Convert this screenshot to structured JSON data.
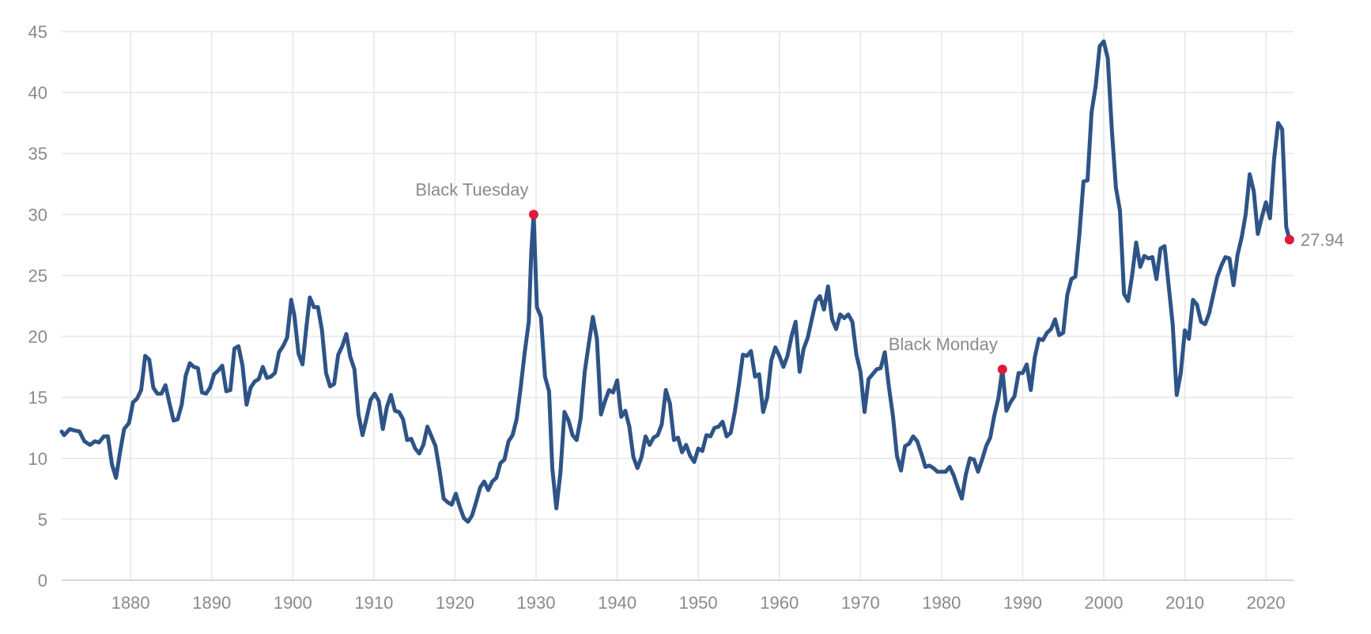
{
  "chart_data": {
    "type": "line",
    "title": "",
    "xlabel": "",
    "ylabel": "",
    "xlim": [
      1871.5,
      2023.4
    ],
    "ylim": [
      0,
      45
    ],
    "x_ticks": [
      1880,
      1890,
      1900,
      1910,
      1920,
      1930,
      1940,
      1950,
      1960,
      1970,
      1980,
      1990,
      2000,
      2010,
      2020
    ],
    "y_ticks": [
      0,
      5,
      10,
      15,
      20,
      25,
      30,
      35,
      40,
      45
    ],
    "grid": true,
    "legend": "none",
    "colors": {
      "series": "#2e5487",
      "marker": "#e0193d",
      "grid": "#e6e6e6",
      "text": "#8a8a8a"
    },
    "series": [
      {
        "points": [
          [
            1871.5,
            12.2
          ],
          [
            1871.8,
            11.9
          ],
          [
            1872.5,
            12.4
          ],
          [
            1873.0,
            12.3
          ],
          [
            1873.7,
            12.2
          ],
          [
            1874.3,
            11.4
          ],
          [
            1875.0,
            11.1
          ],
          [
            1875.6,
            11.4
          ],
          [
            1876.1,
            11.3
          ],
          [
            1876.7,
            11.8
          ],
          [
            1877.2,
            11.8
          ],
          [
            1877.7,
            9.5
          ],
          [
            1878.2,
            8.4
          ],
          [
            1878.7,
            10.5
          ],
          [
            1879.2,
            12.4
          ],
          [
            1879.8,
            12.9
          ],
          [
            1880.3,
            14.6
          ],
          [
            1880.8,
            14.9
          ],
          [
            1881.3,
            15.6
          ],
          [
            1881.8,
            18.4
          ],
          [
            1882.3,
            18.1
          ],
          [
            1882.8,
            15.8
          ],
          [
            1883.3,
            15.3
          ],
          [
            1883.8,
            15.3
          ],
          [
            1884.3,
            16.0
          ],
          [
            1884.8,
            14.5
          ],
          [
            1885.3,
            13.1
          ],
          [
            1885.8,
            13.2
          ],
          [
            1886.3,
            14.4
          ],
          [
            1886.8,
            16.8
          ],
          [
            1887.3,
            17.8
          ],
          [
            1887.8,
            17.5
          ],
          [
            1888.3,
            17.4
          ],
          [
            1888.8,
            15.4
          ],
          [
            1889.3,
            15.3
          ],
          [
            1889.8,
            15.8
          ],
          [
            1890.3,
            16.9
          ],
          [
            1890.8,
            17.2
          ],
          [
            1891.3,
            17.6
          ],
          [
            1891.8,
            15.5
          ],
          [
            1892.3,
            15.6
          ],
          [
            1892.8,
            19.0
          ],
          [
            1893.3,
            19.2
          ],
          [
            1893.8,
            17.6
          ],
          [
            1894.3,
            14.4
          ],
          [
            1894.8,
            15.8
          ],
          [
            1895.3,
            16.3
          ],
          [
            1895.8,
            16.5
          ],
          [
            1896.3,
            17.5
          ],
          [
            1896.8,
            16.6
          ],
          [
            1897.3,
            16.7
          ],
          [
            1897.8,
            17.0
          ],
          [
            1898.3,
            18.7
          ],
          [
            1898.8,
            19.2
          ],
          [
            1899.3,
            19.9
          ],
          [
            1899.8,
            23.0
          ],
          [
            1900.2,
            21.7
          ],
          [
            1900.7,
            18.6
          ],
          [
            1901.2,
            17.7
          ],
          [
            1901.7,
            20.9
          ],
          [
            1902.1,
            23.2
          ],
          [
            1902.6,
            22.4
          ],
          [
            1903.1,
            22.4
          ],
          [
            1903.6,
            20.5
          ],
          [
            1904.1,
            17.0
          ],
          [
            1904.6,
            15.9
          ],
          [
            1905.1,
            16.1
          ],
          [
            1905.6,
            18.5
          ],
          [
            1906.1,
            19.2
          ],
          [
            1906.6,
            20.2
          ],
          [
            1907.1,
            18.3
          ],
          [
            1907.6,
            17.3
          ],
          [
            1908.1,
            13.6
          ],
          [
            1908.6,
            11.9
          ],
          [
            1909.1,
            13.3
          ],
          [
            1909.6,
            14.8
          ],
          [
            1910.1,
            15.3
          ],
          [
            1910.6,
            14.7
          ],
          [
            1911.1,
            12.4
          ],
          [
            1911.6,
            14.2
          ],
          [
            1912.1,
            15.2
          ],
          [
            1912.6,
            13.9
          ],
          [
            1913.1,
            13.8
          ],
          [
            1913.6,
            13.2
          ],
          [
            1914.1,
            11.5
          ],
          [
            1914.6,
            11.6
          ],
          [
            1915.1,
            10.8
          ],
          [
            1915.6,
            10.4
          ],
          [
            1916.1,
            11.1
          ],
          [
            1916.6,
            12.6
          ],
          [
            1917.1,
            11.8
          ],
          [
            1917.6,
            11.0
          ],
          [
            1918.1,
            9.0
          ],
          [
            1918.6,
            6.7
          ],
          [
            1919.1,
            6.4
          ],
          [
            1919.6,
            6.2
          ],
          [
            1920.1,
            7.1
          ],
          [
            1920.6,
            6.0
          ],
          [
            1921.1,
            5.1
          ],
          [
            1921.6,
            4.8
          ],
          [
            1922.1,
            5.3
          ],
          [
            1922.6,
            6.4
          ],
          [
            1923.1,
            7.6
          ],
          [
            1923.6,
            8.1
          ],
          [
            1924.1,
            7.4
          ],
          [
            1924.6,
            8.1
          ],
          [
            1925.1,
            8.4
          ],
          [
            1925.6,
            9.6
          ],
          [
            1926.1,
            9.9
          ],
          [
            1926.6,
            11.4
          ],
          [
            1927.1,
            11.9
          ],
          [
            1927.6,
            13.2
          ],
          [
            1928.1,
            15.8
          ],
          [
            1928.6,
            18.7
          ],
          [
            1929.1,
            21.2
          ],
          [
            1929.4,
            26.8
          ],
          [
            1929.7,
            30.0
          ],
          [
            1930.1,
            22.4
          ],
          [
            1930.6,
            21.6
          ],
          [
            1931.1,
            16.7
          ],
          [
            1931.6,
            15.5
          ],
          [
            1932.0,
            9.2
          ],
          [
            1932.5,
            5.9
          ],
          [
            1933.0,
            8.8
          ],
          [
            1933.5,
            13.8
          ],
          [
            1934.0,
            13.1
          ],
          [
            1934.5,
            11.9
          ],
          [
            1935.0,
            11.5
          ],
          [
            1935.5,
            13.3
          ],
          [
            1936.0,
            17.1
          ],
          [
            1936.5,
            19.4
          ],
          [
            1937.0,
            21.6
          ],
          [
            1937.5,
            19.8
          ],
          [
            1938.0,
            13.6
          ],
          [
            1938.5,
            14.7
          ],
          [
            1939.0,
            15.6
          ],
          [
            1939.5,
            15.4
          ],
          [
            1940.0,
            16.4
          ],
          [
            1940.5,
            13.4
          ],
          [
            1941.0,
            13.9
          ],
          [
            1941.5,
            12.6
          ],
          [
            1942.0,
            10.1
          ],
          [
            1942.5,
            9.2
          ],
          [
            1943.0,
            10.1
          ],
          [
            1943.5,
            11.8
          ],
          [
            1944.0,
            11.1
          ],
          [
            1944.5,
            11.7
          ],
          [
            1945.0,
            11.9
          ],
          [
            1945.5,
            12.8
          ],
          [
            1946.0,
            15.6
          ],
          [
            1946.5,
            14.5
          ],
          [
            1947.0,
            11.5
          ],
          [
            1947.5,
            11.7
          ],
          [
            1948.0,
            10.5
          ],
          [
            1948.5,
            11.1
          ],
          [
            1949.0,
            10.2
          ],
          [
            1949.5,
            9.7
          ],
          [
            1950.0,
            10.8
          ],
          [
            1950.5,
            10.6
          ],
          [
            1951.0,
            11.9
          ],
          [
            1951.5,
            11.8
          ],
          [
            1952.0,
            12.5
          ],
          [
            1952.5,
            12.6
          ],
          [
            1953.0,
            13.0
          ],
          [
            1953.5,
            11.8
          ],
          [
            1954.0,
            12.1
          ],
          [
            1954.5,
            13.8
          ],
          [
            1955.0,
            16.0
          ],
          [
            1955.5,
            18.5
          ],
          [
            1956.0,
            18.4
          ],
          [
            1956.5,
            18.8
          ],
          [
            1957.0,
            16.7
          ],
          [
            1957.5,
            16.9
          ],
          [
            1958.0,
            13.8
          ],
          [
            1958.5,
            15.0
          ],
          [
            1959.0,
            18.0
          ],
          [
            1959.5,
            19.1
          ],
          [
            1960.0,
            18.4
          ],
          [
            1960.5,
            17.5
          ],
          [
            1961.0,
            18.4
          ],
          [
            1961.5,
            20.0
          ],
          [
            1962.0,
            21.2
          ],
          [
            1962.5,
            17.1
          ],
          [
            1963.0,
            19.0
          ],
          [
            1963.5,
            19.9
          ],
          [
            1964.0,
            21.4
          ],
          [
            1964.5,
            22.9
          ],
          [
            1965.0,
            23.3
          ],
          [
            1965.5,
            22.2
          ],
          [
            1966.0,
            24.1
          ],
          [
            1966.5,
            21.4
          ],
          [
            1967.0,
            20.6
          ],
          [
            1967.5,
            21.8
          ],
          [
            1968.0,
            21.5
          ],
          [
            1968.5,
            21.8
          ],
          [
            1969.0,
            21.2
          ],
          [
            1969.5,
            18.5
          ],
          [
            1970.0,
            17.1
          ],
          [
            1970.5,
            13.8
          ],
          [
            1971.0,
            16.5
          ],
          [
            1971.5,
            16.9
          ],
          [
            1972.0,
            17.3
          ],
          [
            1972.5,
            17.4
          ],
          [
            1973.0,
            18.7
          ],
          [
            1973.5,
            15.9
          ],
          [
            1974.0,
            13.5
          ],
          [
            1974.5,
            10.2
          ],
          [
            1975.0,
            9.0
          ],
          [
            1975.5,
            11.0
          ],
          [
            1976.0,
            11.2
          ],
          [
            1976.5,
            11.8
          ],
          [
            1977.0,
            11.4
          ],
          [
            1977.5,
            10.4
          ],
          [
            1978.0,
            9.3
          ],
          [
            1978.5,
            9.4
          ],
          [
            1979.0,
            9.2
          ],
          [
            1979.5,
            8.9
          ],
          [
            1980.0,
            8.9
          ],
          [
            1980.5,
            8.9
          ],
          [
            1981.0,
            9.3
          ],
          [
            1981.5,
            8.6
          ],
          [
            1982.0,
            7.6
          ],
          [
            1982.5,
            6.7
          ],
          [
            1983.0,
            8.7
          ],
          [
            1983.5,
            10.0
          ],
          [
            1984.0,
            9.9
          ],
          [
            1984.5,
            8.9
          ],
          [
            1985.0,
            9.9
          ],
          [
            1985.5,
            11.0
          ],
          [
            1986.0,
            11.7
          ],
          [
            1986.5,
            13.5
          ],
          [
            1987.0,
            14.9
          ],
          [
            1987.5,
            17.3
          ],
          [
            1988.0,
            13.9
          ],
          [
            1988.5,
            14.6
          ],
          [
            1989.0,
            15.1
          ],
          [
            1989.5,
            17.0
          ],
          [
            1990.0,
            17.0
          ],
          [
            1990.5,
            17.7
          ],
          [
            1991.0,
            15.6
          ],
          [
            1991.5,
            18.3
          ],
          [
            1992.0,
            19.8
          ],
          [
            1992.5,
            19.7
          ],
          [
            1993.0,
            20.3
          ],
          [
            1993.5,
            20.6
          ],
          [
            1994.0,
            21.4
          ],
          [
            1994.5,
            20.1
          ],
          [
            1995.0,
            20.3
          ],
          [
            1995.5,
            23.4
          ],
          [
            1996.0,
            24.7
          ],
          [
            1996.5,
            24.9
          ],
          [
            1997.0,
            28.4
          ],
          [
            1997.5,
            32.7
          ],
          [
            1998.0,
            32.8
          ],
          [
            1998.5,
            38.4
          ],
          [
            1999.0,
            40.5
          ],
          [
            1999.5,
            43.8
          ],
          [
            2000.0,
            44.2
          ],
          [
            2000.5,
            42.8
          ],
          [
            2001.0,
            36.9
          ],
          [
            2001.5,
            32.2
          ],
          [
            2002.0,
            30.3
          ],
          [
            2002.5,
            23.5
          ],
          [
            2003.0,
            22.9
          ],
          [
            2003.5,
            25.0
          ],
          [
            2004.0,
            27.7
          ],
          [
            2004.5,
            25.7
          ],
          [
            2005.0,
            26.6
          ],
          [
            2005.5,
            26.4
          ],
          [
            2006.0,
            26.5
          ],
          [
            2006.5,
            24.7
          ],
          [
            2007.0,
            27.2
          ],
          [
            2007.5,
            27.4
          ],
          [
            2008.0,
            24.2
          ],
          [
            2008.5,
            21.0
          ],
          [
            2009.0,
            15.2
          ],
          [
            2009.5,
            17.0
          ],
          [
            2010.0,
            20.5
          ],
          [
            2010.5,
            19.8
          ],
          [
            2011.0,
            23.0
          ],
          [
            2011.5,
            22.6
          ],
          [
            2012.0,
            21.2
          ],
          [
            2012.5,
            21.0
          ],
          [
            2013.0,
            21.9
          ],
          [
            2013.5,
            23.4
          ],
          [
            2014.0,
            24.9
          ],
          [
            2014.5,
            25.8
          ],
          [
            2015.0,
            26.5
          ],
          [
            2015.5,
            26.4
          ],
          [
            2016.0,
            24.2
          ],
          [
            2016.5,
            26.7
          ],
          [
            2017.0,
            28.1
          ],
          [
            2017.5,
            30.0
          ],
          [
            2018.0,
            33.3
          ],
          [
            2018.5,
            31.9
          ],
          [
            2019.0,
            28.4
          ],
          [
            2019.5,
            29.8
          ],
          [
            2020.0,
            31.0
          ],
          [
            2020.5,
            29.7
          ],
          [
            2021.0,
            34.5
          ],
          [
            2021.5,
            37.5
          ],
          [
            2022.0,
            37.0
          ],
          [
            2022.5,
            29.0
          ],
          [
            2022.9,
            27.94
          ]
        ]
      }
    ],
    "annotations": [
      {
        "label": "Black Tuesday",
        "x": 1929.7,
        "y": 30.0,
        "label_position": "above"
      },
      {
        "label": "Black Monday",
        "x": 1987.5,
        "y": 17.3,
        "label_position": "above-left"
      },
      {
        "label": "27.94",
        "x": 2022.9,
        "y": 27.94,
        "label_position": "right"
      }
    ]
  }
}
